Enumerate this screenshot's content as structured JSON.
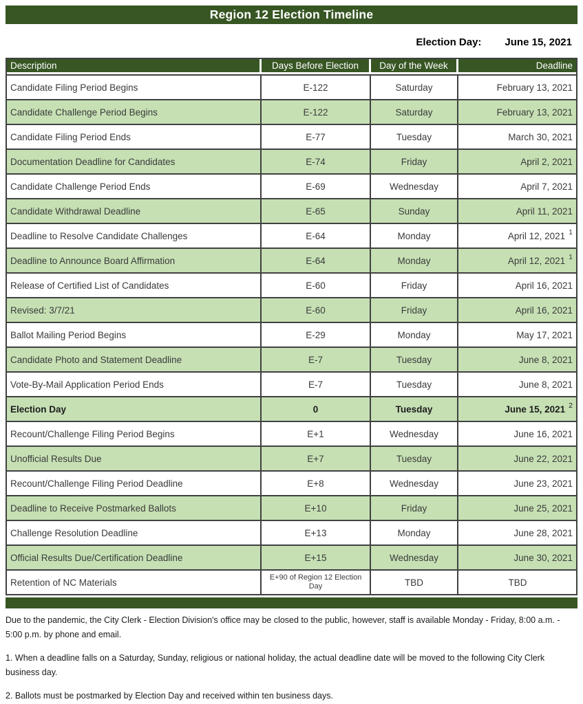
{
  "title": "Region 12 Election Timeline",
  "election_day": {
    "label": "Election Day:",
    "value": "June 15, 2021"
  },
  "colors": {
    "header_green": "#375623",
    "row_green": "#c6e0b4",
    "border": "#404040",
    "cell_text": "#3a3a3a"
  },
  "table": {
    "columns": [
      {
        "label": "Description",
        "align": "left"
      },
      {
        "label": "Days Before Election",
        "align": "center"
      },
      {
        "label": "Day of the Week",
        "align": "center"
      },
      {
        "label": "Deadline",
        "align": "right"
      }
    ],
    "rows": [
      {
        "description": "Candidate Filing Period Begins",
        "days": "E-122",
        "day": "Saturday",
        "deadline": "February 13, 2021",
        "shaded": false
      },
      {
        "description": "Candidate Challenge Period Begins",
        "days": "E-122",
        "day": "Saturday",
        "deadline": "February 13, 2021",
        "shaded": true
      },
      {
        "description": "Candidate Filing Period Ends",
        "days": "E-77",
        "day": "Tuesday",
        "deadline": "March 30, 2021",
        "shaded": false
      },
      {
        "description": "Documentation Deadline for Candidates",
        "days": "E-74",
        "day": "Friday",
        "deadline": "April 2, 2021",
        "shaded": true
      },
      {
        "description": "Candidate Challenge Period Ends",
        "days": "E-69",
        "day": "Wednesday",
        "deadline": "April 7, 2021",
        "shaded": false
      },
      {
        "description": "Candidate Withdrawal Deadline",
        "days": "E-65",
        "day": "Sunday",
        "deadline": "April 11, 2021",
        "shaded": true
      },
      {
        "description": "Deadline to Resolve Candidate Challenges",
        "days": "E-64",
        "day": "Monday",
        "deadline": "April 12, 2021",
        "sup": "1",
        "shaded": false
      },
      {
        "description": "Deadline to Announce Board Affirmation",
        "days": "E-64",
        "day": "Monday",
        "deadline": "April 12, 2021",
        "sup": "1",
        "shaded": true
      },
      {
        "description": "Release of Certified List of Candidates",
        "days": "E-60",
        "day": "Friday",
        "deadline": "April 16, 2021",
        "shaded": false
      },
      {
        "description": "Revised: 3/7/21",
        "days": "E-60",
        "day": "Friday",
        "deadline": "April 16, 2021",
        "shaded": true
      },
      {
        "description": "Ballot Mailing Period Begins",
        "days": "E-29",
        "day": "Monday",
        "deadline": "May 17, 2021",
        "shaded": false
      },
      {
        "description": "Candidate Photo and Statement Deadline",
        "days": "E-7",
        "day": "Tuesday",
        "deadline": "June 8, 2021",
        "shaded": true
      },
      {
        "description": "Vote-By-Mail Application Period Ends",
        "days": "E-7",
        "day": "Tuesday",
        "deadline": "June 8, 2021",
        "shaded": false
      },
      {
        "description": "Election Day",
        "days": "0",
        "day": "Tuesday",
        "deadline": "June 15, 2021",
        "sup": "2",
        "bold": true,
        "shaded": true
      },
      {
        "description": "Recount/Challenge Filing Period Begins",
        "days": "E+1",
        "day": "Wednesday",
        "deadline": "June 16, 2021",
        "shaded": false
      },
      {
        "description": "Unofficial Results Due",
        "days": "E+7",
        "day": "Tuesday",
        "deadline": "June 22, 2021",
        "shaded": true
      },
      {
        "description": "Recount/Challenge Filing Period Deadline",
        "days": "E+8",
        "day": "Wednesday",
        "deadline": "June 23, 2021",
        "shaded": false
      },
      {
        "description": "Deadline to Receive Postmarked Ballots",
        "days": "E+10",
        "day": "Friday",
        "deadline": "June 25, 2021",
        "shaded": true
      },
      {
        "description": "Challenge Resolution Deadline",
        "days": "E+13",
        "day": "Monday",
        "deadline": "June 28, 2021",
        "shaded": false
      },
      {
        "description": "Official Results Due/Certification Deadline",
        "days": "E+15",
        "day": "Wednesday",
        "deadline": "June 30, 2021",
        "shaded": true
      },
      {
        "description": "Retention of NC Materials",
        "days": "E+90 of Region 12 Election Day",
        "day": "TBD",
        "deadline": "TBD",
        "shaded": false,
        "days_small": true,
        "deadline_center": true
      }
    ]
  },
  "footnotes": [
    "Due to the pandemic, the City Clerk - Election Division's office may be closed to the public, however, staff is available Monday - Friday, 8:00 a.m. - 5:00 p.m. by phone and email.",
    "1. When a deadline falls on a Saturday, Sunday, religious or national holiday, the actual deadline date will be moved to the following City Clerk business day.",
    "2. Ballots must be postmarked by Election Day and received within ten business days."
  ]
}
